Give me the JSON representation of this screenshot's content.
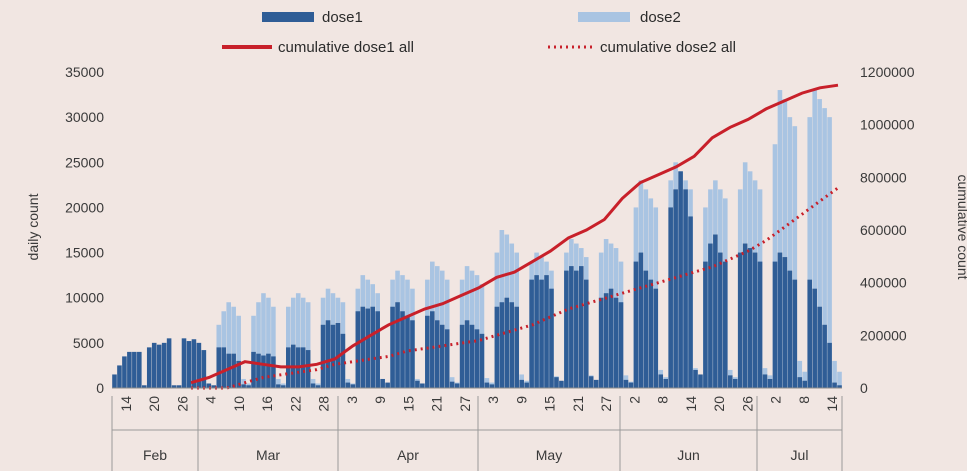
{
  "chart_data": {
    "type": "bar",
    "ylabel": "daily count",
    "y2label": "cumulative count",
    "ylim": [
      0,
      35000
    ],
    "y2lim": [
      0,
      1200000
    ],
    "yticks": [
      "0",
      "5000",
      "10000",
      "15000",
      "20000",
      "25000",
      "30000",
      "35000"
    ],
    "y2ticks": [
      "0",
      "200000",
      "400000",
      "600000",
      "800000",
      "1000000",
      "1200000"
    ],
    "x_tick_labels": [
      "14",
      "20",
      "26",
      "4",
      "10",
      "16",
      "22",
      "28",
      "3",
      "9",
      "15",
      "21",
      "27",
      "3",
      "9",
      "15",
      "21",
      "27",
      "2",
      "8",
      "14",
      "20",
      "26",
      "2",
      "8",
      "14"
    ],
    "months": [
      "Feb",
      "Mar",
      "Apr",
      "May",
      "Jun",
      "Jul"
    ],
    "legend": [
      {
        "name": "dose1",
        "kind": "bar",
        "color": "#2f5d96"
      },
      {
        "name": "dose2",
        "kind": "bar",
        "color": "#a9c4e2"
      },
      {
        "name": "cumulative dose1 all",
        "kind": "line",
        "color": "#c8202a"
      },
      {
        "name": "cumulative dose2 all",
        "kind": "dotted",
        "color": "#c8202a"
      }
    ],
    "colors": {
      "dose1": "#2f5d96",
      "dose2": "#a9c4e2",
      "cumulative": "#c8202a"
    },
    "series": [
      {
        "name": "dose1",
        "axis": "left",
        "values": [
          1500,
          2500,
          3500,
          4000,
          4000,
          4000,
          300,
          4500,
          5000,
          4800,
          5000,
          5500,
          300,
          300,
          5500,
          5200,
          5400,
          5000,
          4200,
          500,
          300,
          4500,
          4500,
          3800,
          3800,
          3000,
          400,
          300,
          4000,
          3800,
          3600,
          3800,
          3500,
          400,
          300,
          4500,
          4800,
          4500,
          4500,
          4200,
          500,
          300,
          7000,
          7500,
          7000,
          7200,
          6000,
          600,
          400,
          8500,
          9000,
          8800,
          9000,
          8500,
          1000,
          600,
          9000,
          9500,
          8500,
          8000,
          7500,
          800,
          500,
          8000,
          8500,
          7500,
          7000,
          6500,
          700,
          500,
          7000,
          7500,
          7000,
          6500,
          6000,
          600,
          400,
          9000,
          9500,
          10000,
          9500,
          9000,
          900,
          600,
          12000,
          12500,
          12000,
          12500,
          11000,
          1200,
          800,
          13000,
          13500,
          13000,
          13500,
          12000,
          1300,
          900,
          10000,
          10500,
          11000,
          10000,
          9500,
          900,
          600,
          14000,
          15000,
          13000,
          12000,
          11000,
          1500,
          1000,
          20000,
          22000,
          24000,
          22000,
          19000,
          2000,
          1500,
          14000,
          16000,
          17000,
          15000,
          14000,
          1400,
          1000,
          15000,
          16000,
          15500,
          15000,
          14000,
          1500,
          1000,
          14000,
          15000,
          14500,
          13000,
          12000,
          1200,
          800,
          12000,
          11000,
          9000,
          7000,
          5000,
          600,
          300
        ]
      },
      {
        "name": "dose2",
        "axis": "left",
        "values": [
          0,
          0,
          0,
          0,
          0,
          0,
          0,
          0,
          0,
          0,
          0,
          0,
          0,
          0,
          0,
          500,
          800,
          1000,
          1200,
          300,
          200,
          7000,
          8500,
          9500,
          9000,
          8000,
          1000,
          500,
          8000,
          9500,
          10500,
          10000,
          9000,
          1000,
          500,
          9000,
          10000,
          10500,
          10000,
          9500,
          1000,
          500,
          10000,
          11000,
          10500,
          10000,
          9500,
          1000,
          500,
          11000,
          12500,
          12000,
          11500,
          10500,
          1000,
          500,
          12000,
          13000,
          12500,
          12000,
          11000,
          1000,
          500,
          12000,
          14000,
          13500,
          13000,
          12000,
          1200,
          600,
          12000,
          13500,
          13000,
          12500,
          11500,
          1100,
          600,
          15000,
          17500,
          17000,
          16000,
          15000,
          1500,
          800,
          14000,
          15000,
          14500,
          14000,
          13000,
          1300,
          700,
          15000,
          16500,
          16000,
          15500,
          14500,
          1400,
          700,
          15000,
          16500,
          16000,
          15500,
          14000,
          1400,
          700,
          20000,
          23000,
          22000,
          21000,
          20000,
          2000,
          1200,
          23000,
          25000,
          24000,
          23000,
          22000,
          2200,
          1400,
          20000,
          22000,
          23000,
          22000,
          21000,
          2000,
          1200,
          22000,
          25000,
          24000,
          23000,
          22000,
          2200,
          1400,
          27000,
          33000,
          32000,
          30000,
          29000,
          3000,
          1800,
          30000,
          33000,
          32000,
          31000,
          30000,
          3000,
          1800
        ]
      },
      {
        "name": "cumulative dose1 all",
        "axis": "right",
        "values": [
          20000,
          40000,
          70000,
          100000,
          90000,
          80000,
          80000,
          90000,
          110000,
          160000,
          200000,
          240000,
          270000,
          300000,
          320000,
          350000,
          380000,
          420000,
          440000,
          480000,
          520000,
          570000,
          600000,
          640000,
          720000,
          780000,
          810000,
          840000,
          880000,
          950000,
          990000,
          1020000,
          1060000,
          1090000,
          1120000,
          1140000,
          1150000
        ]
      },
      {
        "name": "cumulative dose2 all",
        "axis": "right",
        "values": [
          0,
          0,
          0,
          20000,
          40000,
          50000,
          60000,
          70000,
          90000,
          100000,
          110000,
          120000,
          140000,
          150000,
          160000,
          170000,
          180000,
          200000,
          220000,
          240000,
          270000,
          300000,
          320000,
          340000,
          360000,
          380000,
          400000,
          420000,
          440000,
          460000,
          490000,
          520000,
          560000,
          610000,
          660000,
          710000,
          760000
        ]
      }
    ]
  }
}
